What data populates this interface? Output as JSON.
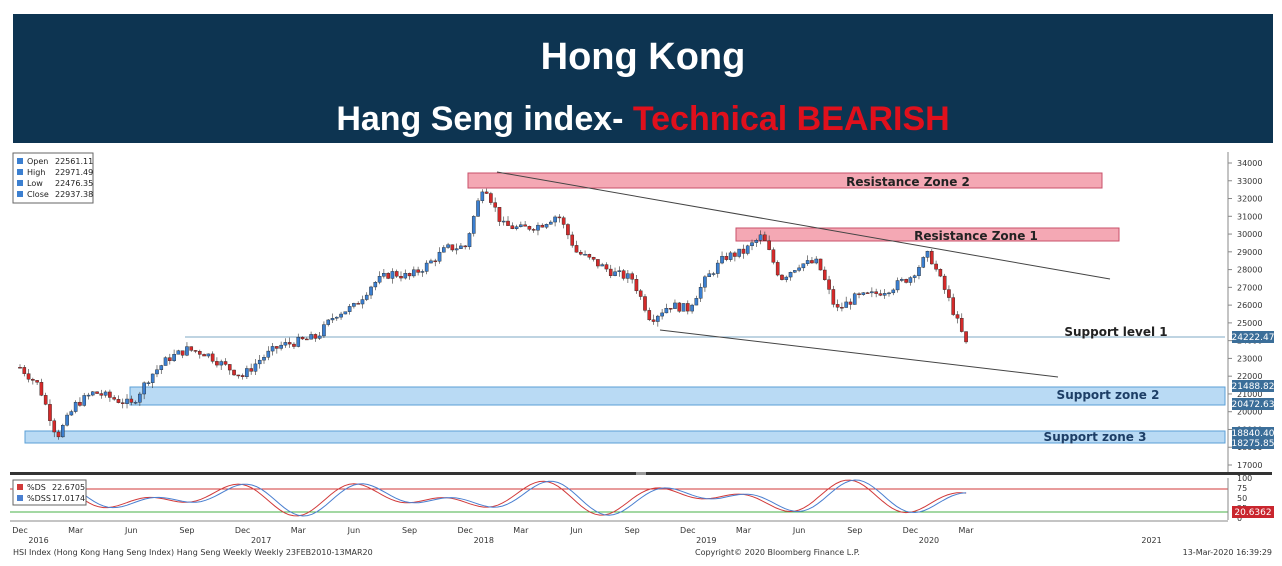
{
  "header": {
    "title": "Hong Kong",
    "subtitle_prefix": "Hang Seng index- ",
    "subtitle_highlight": "Technical BEARISH"
  },
  "colors": {
    "banner": "#0d3451",
    "bearish": "#e0101c",
    "up_candle": "#3b7fd0",
    "down_candle": "#d42a2a",
    "resistance_fill": "#f4a8b4",
    "support_fill": "#b9daf4"
  },
  "legend": {
    "open_label": "Open",
    "open_value": "22561.11",
    "high_label": "High",
    "high_value": "22971.49",
    "low_label": "Low",
    "low_value": "22476.35",
    "close_label": "Close",
    "close_value": "22937.38"
  },
  "osc_legend": {
    "ds_label": "%DS",
    "ds_value": "22.6705",
    "dss_label": "%DSS",
    "dss_value": "17.0174"
  },
  "zones": {
    "resistance2": "Resistance Zone 2",
    "resistance1": "Resistance Zone 1",
    "support1": "Support level 1",
    "support2": "Support zone 2",
    "support3": "Support zone 3"
  },
  "price_tags": {
    "support1": "24222.47",
    "support2_top": "21488.82",
    "support2_bottom": "20472.63",
    "support3_top": "18840.40",
    "support3_bottom": "18275.85",
    "osc_current": "20.6362"
  },
  "footer": {
    "left": "HSI Index (Hong Kong Hang Seng Index) Hang Seng Weekly  Weekly 23FEB2010-13MAR20",
    "center": "Copyright© 2020 Bloomberg Finance L.P.",
    "right": "13-Mar-2020 16:39:29"
  },
  "chart_data": {
    "type": "candlestick",
    "frequency": "weekly",
    "y_ticks": [
      17000,
      18000,
      19000,
      20000,
      21000,
      22000,
      23000,
      24000,
      25000,
      26000,
      27000,
      28000,
      29000,
      30000,
      31000,
      32000,
      33000,
      34000
    ],
    "ylim": [
      16500,
      34500
    ],
    "osc_ticks": [
      0,
      25,
      50,
      75,
      100
    ],
    "x_month_labels": [
      "Dec",
      "Mar",
      "Jun",
      "Sep",
      "Dec",
      "Mar",
      "Jun",
      "Sep",
      "Dec",
      "Mar",
      "Jun",
      "Sep",
      "Dec",
      "Mar",
      "Jun",
      "Sep",
      "Dec",
      "Mar"
    ],
    "x_year_labels": [
      "2016",
      "2017",
      "2018",
      "2019",
      "2020",
      "2021"
    ],
    "resistance_zone_2": [
      32900,
      33700
    ],
    "resistance_zone_1": [
      29600,
      30300
    ],
    "support_level_1": 24222.47,
    "support_zone_2": [
      20472.63,
      21488.82
    ],
    "support_zone_3": [
      18275.85,
      18840.4
    ],
    "path_anchors": [
      [
        "2015-12",
        22500
      ],
      [
        "2016-01",
        21500
      ],
      [
        "2016-02",
        18600
      ],
      [
        "2016-03",
        20400
      ],
      [
        "2016-04",
        21100
      ],
      [
        "2016-06",
        20400
      ],
      [
        "2016-07",
        22000
      ],
      [
        "2016-08",
        23000
      ],
      [
        "2016-09",
        23500
      ],
      [
        "2016-10",
        23300
      ],
      [
        "2016-11",
        22600
      ],
      [
        "2016-12",
        22000
      ],
      [
        "2017-01",
        23000
      ],
      [
        "2017-02",
        23700
      ],
      [
        "2017-04",
        24200
      ],
      [
        "2017-05",
        25500
      ],
      [
        "2017-06",
        25900
      ],
      [
        "2017-07",
        27200
      ],
      [
        "2017-08",
        27800
      ],
      [
        "2017-09",
        27600
      ],
      [
        "2017-10",
        28300
      ],
      [
        "2017-11",
        29200
      ],
      [
        "2017-12",
        29300
      ],
      [
        "2018-01",
        32900
      ],
      [
        "2018-02",
        30500
      ],
      [
        "2018-03",
        30300
      ],
      [
        "2018-04",
        30500
      ],
      [
        "2018-05",
        31100
      ],
      [
        "2018-06",
        29000
      ],
      [
        "2018-07",
        28400
      ],
      [
        "2018-08",
        27800
      ],
      [
        "2018-09",
        27500
      ],
      [
        "2018-10",
        25200
      ],
      [
        "2018-11",
        26000
      ],
      [
        "2018-12",
        25800
      ],
      [
        "2019-01",
        27500
      ],
      [
        "2019-02",
        28700
      ],
      [
        "2019-03",
        29000
      ],
      [
        "2019-04",
        29900
      ],
      [
        "2019-05",
        27500
      ],
      [
        "2019-06",
        28300
      ],
      [
        "2019-07",
        28400
      ],
      [
        "2019-08",
        25700
      ],
      [
        "2019-09",
        26400
      ],
      [
        "2019-10",
        26600
      ],
      [
        "2019-11",
        27000
      ],
      [
        "2019-12",
        27600
      ],
      [
        "2020-01",
        28900
      ],
      [
        "2020-02",
        26500
      ],
      [
        "2020-03",
        23800
      ]
    ]
  }
}
